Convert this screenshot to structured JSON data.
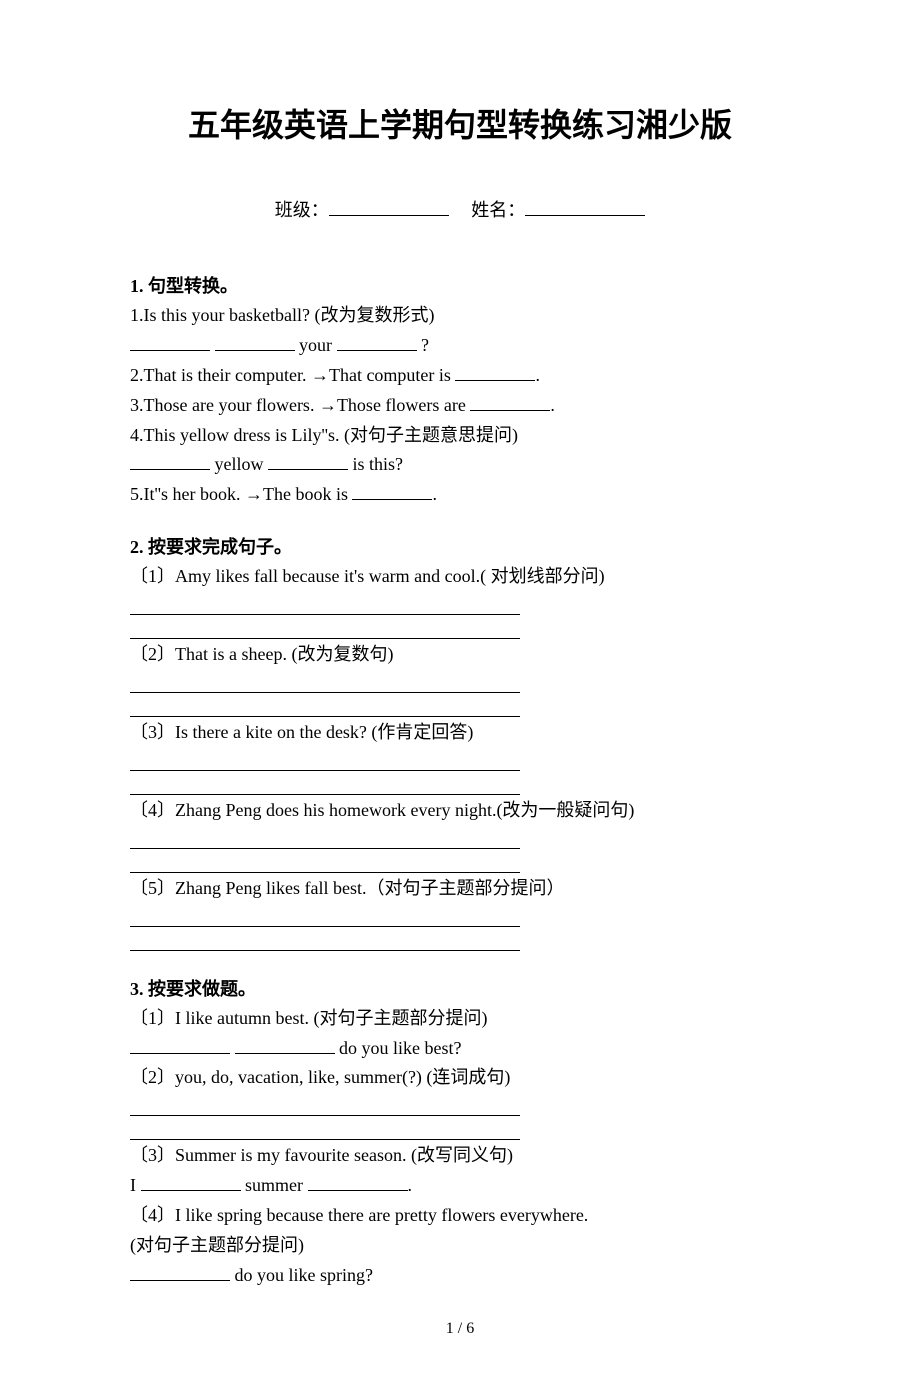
{
  "title": "五年级英语上学期句型转换练习湘少版",
  "info": {
    "class_label": "班级：",
    "name_label": "姓名："
  },
  "section1": {
    "heading": "1.  句型转换。",
    "q1": "1.Is this your basketball? (改为复数形式)",
    "q1_word_your": " your ",
    "q1_qmark": "?",
    "q2": "2.That is their computer. →That computer is ",
    "q2_end": ".",
    "q3": "3.Those are your flowers. →Those flowers are ",
    "q3_end": ".",
    "q4": "4.This yellow dress is Lily''s. (对句子主题意思提问)",
    "q4_word_yellow": " yellow ",
    "q4_end": " is this?",
    "q5": "5.It''s her book. →The book is ",
    "q5_end": "."
  },
  "section2": {
    "heading": "2.  按要求完成句子。",
    "q1": "〔1〕Amy likes fall because it's warm and cool.( 对划线部分问)",
    "q2": "〔2〕That is a sheep. (改为复数句)",
    "q3": "〔3〕Is there a kite on the desk? (作肯定回答)",
    "q4": "〔4〕Zhang Peng does his homework every night.(改为一般疑问句)",
    "q5": "〔5〕Zhang Peng likes fall best.（对句子主题部分提问）"
  },
  "section3": {
    "heading": "3.  按要求做题。",
    "q1": "〔1〕I like autumn best. (对句子主题部分提问)",
    "q1_end": " do you like best?",
    "q2": "〔2〕you, do, vacation, like, summer(?)  (连词成句)",
    "q3": "〔3〕Summer is my favourite season.     (改写同义句)",
    "q3_pre": "I ",
    "q3_mid": " summer ",
    "q3_end": ".",
    "q4a": "〔4〕I like spring because there are pretty flowers everywhere.",
    "q4b": "(对句子主题部分提问)",
    "q4_end": " do you like spring?"
  },
  "page_number": "1 / 6"
}
